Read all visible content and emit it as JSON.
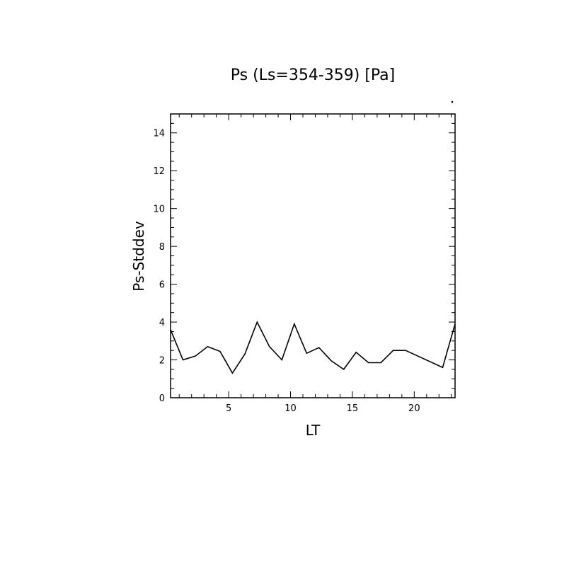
{
  "chart_data": {
    "type": "line",
    "title": "Ps (Ls=354-359) [Pa]",
    "xlabel": "LT",
    "ylabel": "Ps-Stddev",
    "xlim": [
      0.3,
      23.3
    ],
    "ylim": [
      0,
      15
    ],
    "xticks": [
      5,
      10,
      15,
      20
    ],
    "yticks": [
      0,
      2,
      4,
      6,
      8,
      10,
      12,
      14
    ],
    "grid": false,
    "series": [
      {
        "color": "#000000",
        "x": [
          0.3,
          1.3,
          2.3,
          3.3,
          4.3,
          5.3,
          6.3,
          7.3,
          8.3,
          9.3,
          10.3,
          11.3,
          12.3,
          13.3,
          14.3,
          15.3,
          16.3,
          17.3,
          18.3,
          19.3,
          20.3,
          21.3,
          22.3,
          23.3
        ],
        "y": [
          3.6,
          2.0,
          2.2,
          2.7,
          2.45,
          1.3,
          2.3,
          4.0,
          2.7,
          2.0,
          3.9,
          2.35,
          2.65,
          1.95,
          1.5,
          2.4,
          1.85,
          1.85,
          2.5,
          2.5,
          2.2,
          1.9,
          1.6,
          3.9
        ]
      }
    ]
  }
}
